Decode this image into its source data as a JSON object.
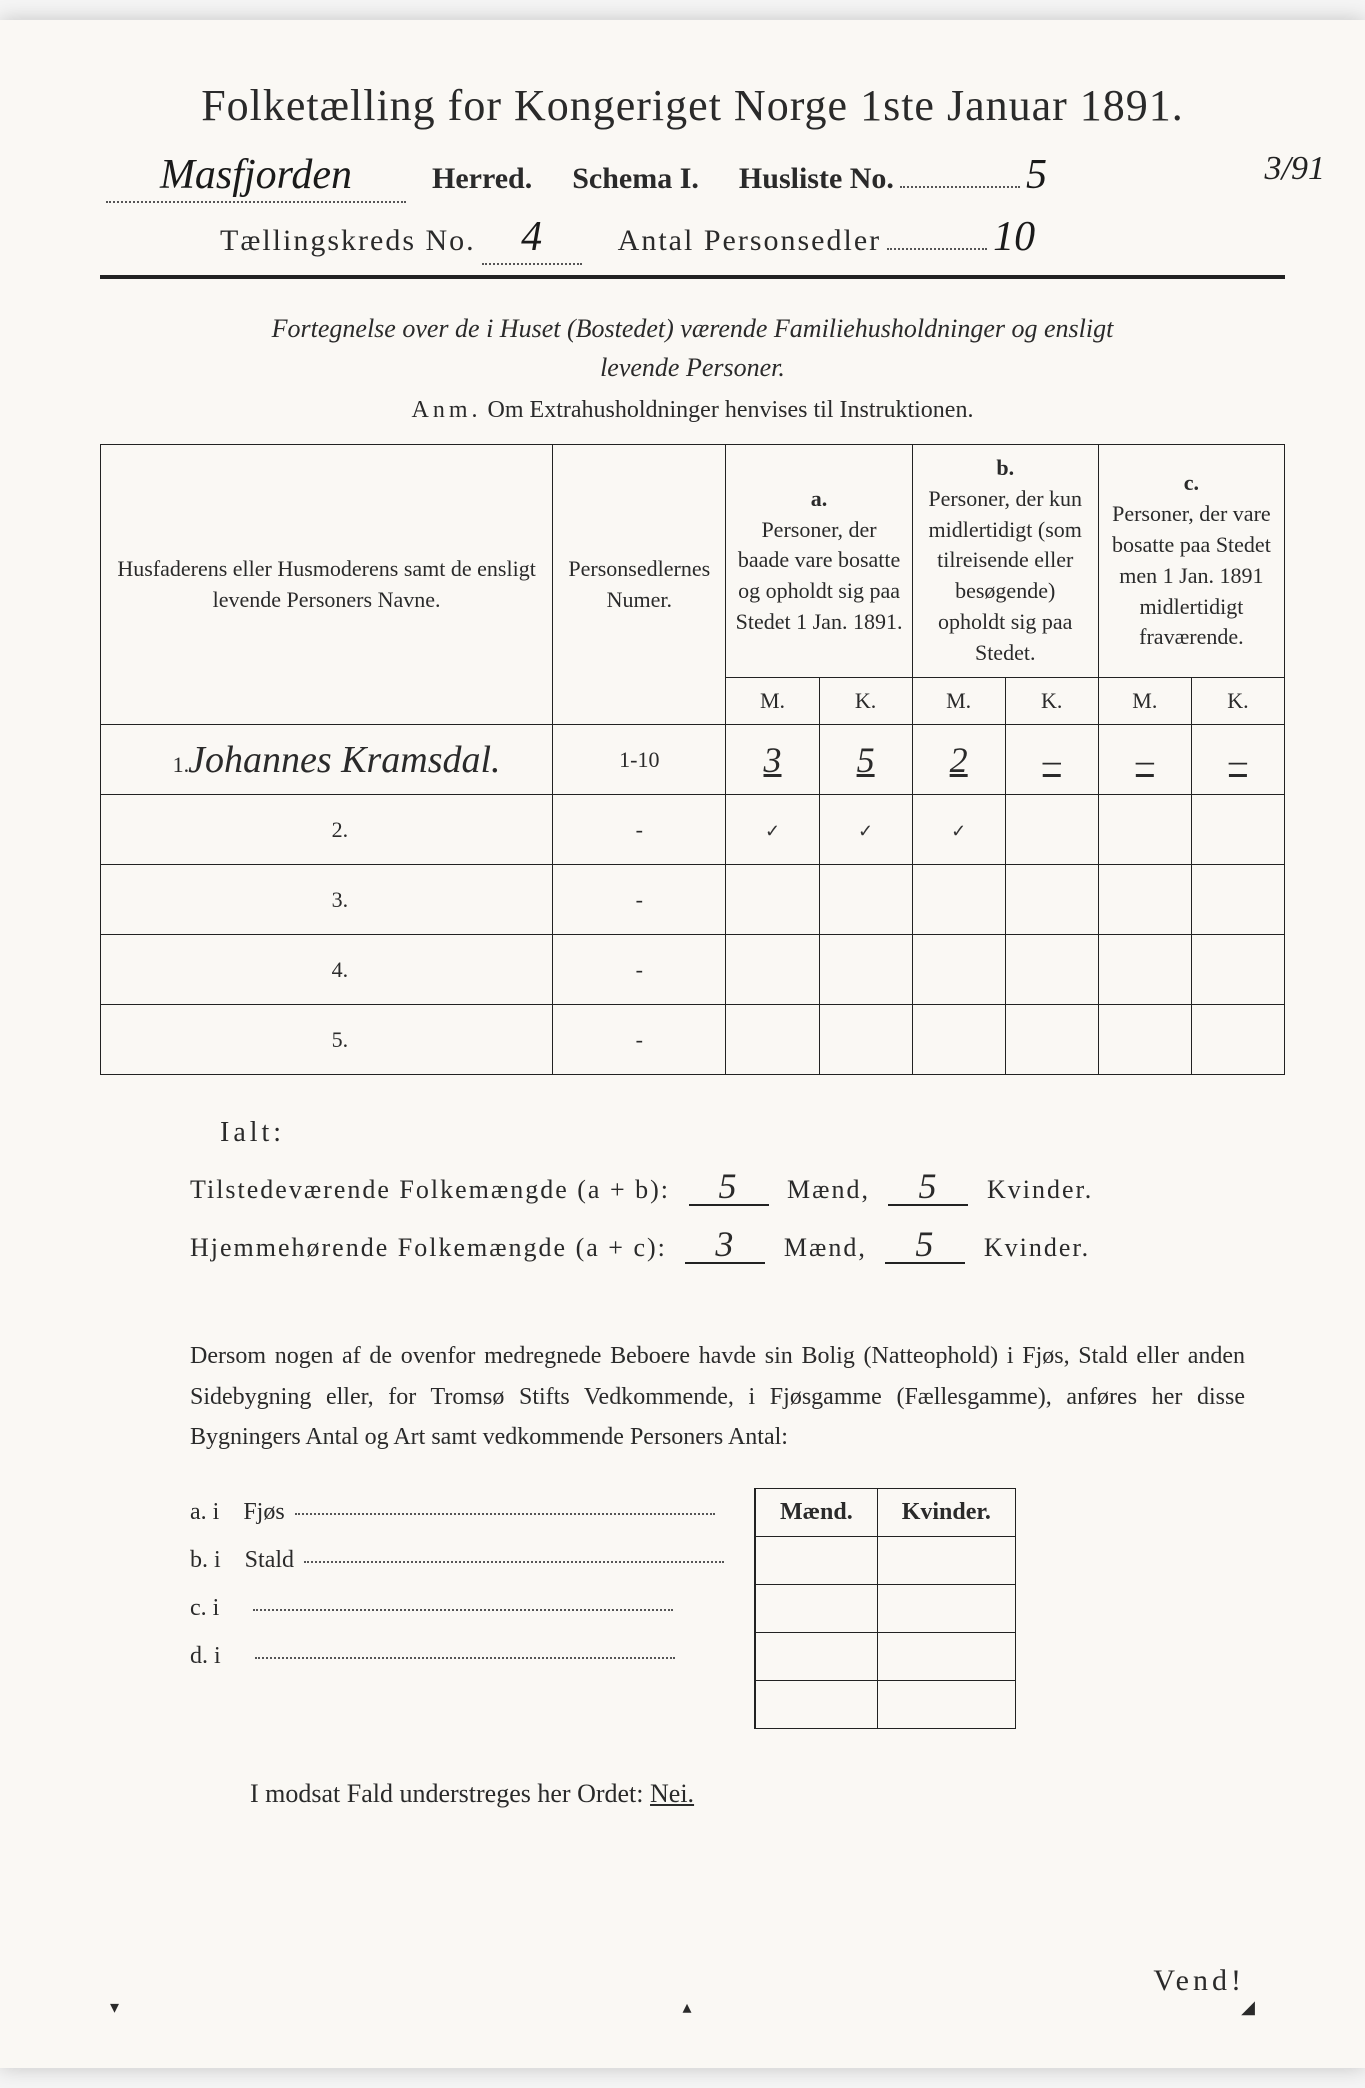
{
  "title": "Folketælling for Kongeriget Norge 1ste Januar 1891.",
  "header": {
    "district_hand": "Masfjorden",
    "herred": "Herred.",
    "schema": "Schema I.",
    "husliste_label": "Husliste No.",
    "husliste_no": "5",
    "margin_frac": "3/91",
    "kreds_label": "Tællingskreds No.",
    "kreds_no": "4",
    "antal_label": "Antal Personsedler",
    "antal_no": "10"
  },
  "subtitle": {
    "line1": "Fortegnelse over de i Huset (Bostedet) værende Familiehusholdninger og ensligt",
    "line2": "levende Personer.",
    "anm_label": "Anm.",
    "anm_text": "Om Extrahusholdninger henvises til Instruktionen."
  },
  "table": {
    "col_name": "Husfaderens eller Husmoderens samt de ensligt levende Personers Navne.",
    "col_num": "Personsedlernes Numer.",
    "col_a_label": "a.",
    "col_a": "Personer, der baade vare bosatte og opholdt sig paa Stedet 1 Jan. 1891.",
    "col_b_label": "b.",
    "col_b": "Personer, der kun midlertidigt (som tilreisende eller besøgende) opholdt sig paa Stedet.",
    "col_c_label": "c.",
    "col_c": "Personer, der vare bosatte paa Stedet men 1 Jan. 1891 midlertidigt fraværende.",
    "M": "M.",
    "K": "K.",
    "rows": [
      {
        "n": "1.",
        "name": "Johannes Kramsdal.",
        "num": "1-10",
        "aM": "3",
        "aK": "5",
        "bM": "2",
        "bK": "–",
        "cM": "–",
        "cK": "–"
      },
      {
        "n": "2.",
        "name": "",
        "num": "-",
        "aM": "✓",
        "aK": "✓",
        "bM": "✓",
        "bK": "",
        "cM": "",
        "cK": ""
      },
      {
        "n": "3.",
        "name": "",
        "num": "-",
        "aM": "",
        "aK": "",
        "bM": "",
        "bK": "",
        "cM": "",
        "cK": ""
      },
      {
        "n": "4.",
        "name": "",
        "num": "-",
        "aM": "",
        "aK": "",
        "bM": "",
        "bK": "",
        "cM": "",
        "cK": ""
      },
      {
        "n": "5.",
        "name": "",
        "num": "-",
        "aM": "",
        "aK": "",
        "bM": "",
        "bK": "",
        "cM": "",
        "cK": ""
      }
    ]
  },
  "totals": {
    "ialt": "Ialt:",
    "tilstede_label": "Tilstedeværende Folkemængde (a + b):",
    "tilstede_m": "5",
    "tilstede_k": "5",
    "hjemme_label": "Hjemmehørende Folkemængde (a + c):",
    "hjemme_m": "3",
    "hjemme_k": "5",
    "maend": "Mænd,",
    "kvinder": "Kvinder."
  },
  "paragraph": "Dersom nogen af de ovenfor medregnede Beboere havde sin Bolig (Natteophold) i Fjøs, Stald eller anden Sidebygning eller, for Tromsø Stifts Vedkommende, i Fjøsgamme (Fællesgamme), anføres her disse Bygningers Antal og Art samt vedkommende Personers Antal:",
  "housing": {
    "head_m": "Mænd.",
    "head_k": "Kvinder.",
    "items": [
      {
        "label": "a.  i",
        "type": "Fjøs"
      },
      {
        "label": "b.  i",
        "type": "Stald"
      },
      {
        "label": "c.  i",
        "type": ""
      },
      {
        "label": "d.  i",
        "type": ""
      }
    ]
  },
  "bottom": "I modsat Fald understreges her Ordet:",
  "nei": "Nei.",
  "vend": "Vend!"
}
